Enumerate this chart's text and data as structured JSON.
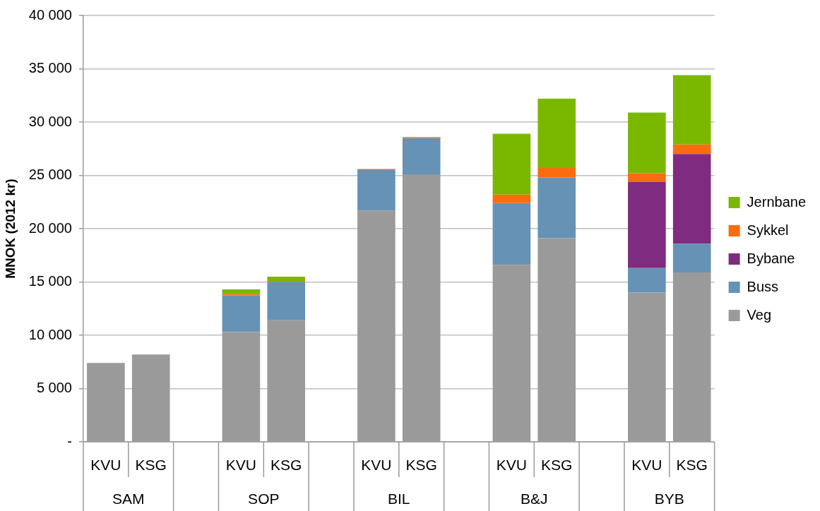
{
  "chart_data": {
    "type": "bar",
    "stacked": true,
    "ylabel": "MNOK (2012 kr)",
    "categories": [
      "KVU",
      "KSG",
      null,
      "KVU",
      "KSG",
      null,
      "KVU",
      "KSG",
      null,
      "KVU",
      "KSG",
      null,
      "KVU",
      "KSG"
    ],
    "annotations": [
      "SAM",
      "SOP",
      "BIL",
      "B&J",
      "BYB"
    ],
    "series": [
      {
        "name": "Veg",
        "color": "#9a9a9a",
        "values": [
          7400,
          8200,
          null,
          10300,
          11400,
          null,
          21700,
          25100,
          null,
          16600,
          19100,
          null,
          14000,
          15900
        ]
      },
      {
        "name": "Buss",
        "color": "#6592b5",
        "values": [
          0,
          0,
          null,
          3450,
          3600,
          null,
          3800,
          3400,
          null,
          5800,
          5700,
          null,
          2300,
          2700
        ]
      },
      {
        "name": "Bybane",
        "color": "#7f2b7f",
        "values": [
          0,
          0,
          null,
          0,
          0,
          null,
          0,
          0,
          null,
          0,
          0,
          null,
          8100,
          8400
        ]
      },
      {
        "name": "Sykkel",
        "color": "#f96c10",
        "values": [
          0,
          0,
          null,
          100,
          100,
          null,
          100,
          100,
          null,
          800,
          900,
          null,
          800,
          900
        ]
      },
      {
        "name": "Jernbane",
        "color": "#7ab800",
        "values": [
          0,
          0,
          null,
          450,
          400,
          null,
          0,
          0,
          null,
          5700,
          6500,
          null,
          5700,
          6500
        ]
      }
    ],
    "ylim": [
      0,
      40000
    ],
    "yticks": [
      {
        "value": 0,
        "label": "-"
      },
      {
        "value": 5000,
        "label": "5 000"
      },
      {
        "value": 10000,
        "label": "10 000"
      },
      {
        "value": 15000,
        "label": "15 000"
      },
      {
        "value": 20000,
        "label": "20 000"
      },
      {
        "value": 25000,
        "label": "25 000"
      },
      {
        "value": 30000,
        "label": "30 000"
      },
      {
        "value": 35000,
        "label": "35 000"
      },
      {
        "value": 40000,
        "label": "40 000"
      }
    ],
    "grid": "y",
    "legend": "right"
  }
}
